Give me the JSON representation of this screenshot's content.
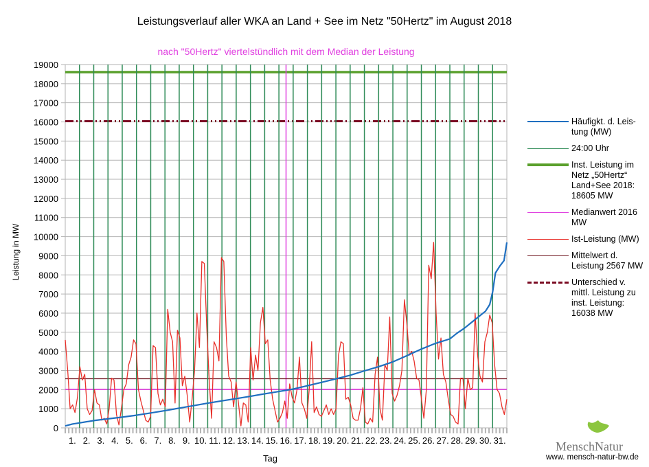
{
  "chart_data": {
    "type": "line",
    "title": "Leistungsverlauf aller WKA an Land + See im Netz \"50Hertz\" im August 2018",
    "subtitle": "nach \"50Hertz\" viertelstündlich mit dem Median der Leistung",
    "xlabel": "Tag",
    "ylabel": "Leistung in MW",
    "ylim": [
      0,
      19000
    ],
    "xlim": [
      0,
      31
    ],
    "grid": true,
    "legend_position": "right",
    "yticks": [
      0,
      1000,
      2000,
      3000,
      4000,
      5000,
      6000,
      7000,
      8000,
      9000,
      10000,
      11000,
      12000,
      13000,
      14000,
      15000,
      16000,
      17000,
      18000,
      19000
    ],
    "xtick_labels": [
      "1.",
      "2.",
      "3.",
      "4.",
      "5.",
      "6.",
      "7.",
      "8.",
      "9.",
      "10.",
      "11.",
      "12.",
      "13.",
      "14.",
      "15.",
      "16.",
      "17.",
      "18.",
      "19.",
      "20.",
      "21.",
      "22.",
      "23.",
      "24.",
      "25.",
      "26.",
      "27.",
      "28.",
      "29.",
      "30.",
      "31."
    ],
    "x_unit": "days since 1 Aug 00:00 (quarter-day samples)",
    "series": [
      {
        "name": "Häufigkt. d. Leistung (MW)",
        "color": "#1f6fc0",
        "kind": "duration-curve",
        "x": [
          0,
          0.5,
          1,
          2,
          3,
          4,
          5,
          6,
          7,
          8,
          9,
          10,
          11,
          12,
          13,
          14,
          15,
          16,
          17,
          18,
          19,
          20,
          21,
          22,
          23,
          24,
          25,
          26,
          27,
          27.5,
          28,
          28.5,
          29,
          29.5,
          29.8,
          30,
          30.2,
          30.5,
          30.8,
          31
        ],
        "values": [
          100,
          200,
          260,
          380,
          470,
          560,
          660,
          780,
          900,
          1030,
          1160,
          1290,
          1410,
          1530,
          1650,
          1780,
          1900,
          2030,
          2200,
          2380,
          2560,
          2750,
          2980,
          3200,
          3450,
          3780,
          4120,
          4420,
          4650,
          4950,
          5200,
          5500,
          5800,
          6100,
          6450,
          7100,
          8100,
          8450,
          8750,
          9700
        ]
      },
      {
        "name": "Ist-Leistung (MW)",
        "color": "#e8302a",
        "kind": "quarter-day samples",
        "values": [
          4600,
          3000,
          1000,
          1200,
          800,
          1600,
          3200,
          2500,
          2800,
          1000,
          700,
          900,
          2000,
          1300,
          1200,
          400,
          500,
          200,
          1000,
          2600,
          2500,
          700,
          150,
          1000,
          2000,
          2300,
          3300,
          3700,
          4600,
          4400,
          2000,
          1400,
          900,
          400,
          300,
          600,
          4300,
          4200,
          1800,
          1200,
          1500,
          1100,
          6200,
          5000,
          4500,
          1300,
          5100,
          4700,
          2200,
          2700,
          1700,
          300,
          1500,
          3000,
          6000,
          4200,
          8700,
          8600,
          5300,
          2500,
          500,
          4500,
          4200,
          3500,
          8900,
          8700,
          4800,
          2700,
          2400,
          1100,
          2400,
          1300,
          100,
          1300,
          1200,
          300,
          4200,
          2500,
          3800,
          3000,
          5500,
          6300,
          4400,
          4600,
          2500,
          1500,
          900,
          300,
          500,
          800,
          1400,
          500,
          2300,
          1600,
          1300,
          2000,
          3700,
          1300,
          1000,
          500,
          2000,
          4500,
          800,
          1100,
          700,
          600,
          900,
          1200,
          700,
          1000,
          700,
          1000,
          3800,
          4500,
          4400,
          1500,
          1600,
          1200,
          500,
          400,
          400,
          1000,
          2100,
          300,
          200,
          500,
          300,
          2800,
          3700,
          1000,
          400,
          3300,
          3000,
          5800,
          1800,
          1400,
          1700,
          2200,
          3000,
          6700,
          5500,
          3800,
          4000,
          3500,
          2600,
          2500,
          1500,
          500,
          2000,
          8500,
          7800,
          9700,
          6000,
          3600,
          4700,
          2800,
          2400,
          1500,
          700,
          600,
          300,
          200,
          2600,
          2600,
          1000,
          2600,
          2000,
          2100,
          6000,
          3800,
          2700,
          2400,
          4500,
          5000,
          5900,
          5500,
          3300,
          2000,
          1800,
          1100,
          700,
          1500
        ]
      },
      {
        "name": "24:00 Uhr",
        "color": "#2e8b57",
        "kind": "vertical-lines",
        "x": [
          1,
          2,
          3,
          4,
          5,
          6,
          7,
          8,
          9,
          10,
          11,
          12,
          13,
          14,
          15,
          16,
          17,
          18,
          19,
          20,
          21,
          22,
          23,
          24,
          25,
          26,
          27,
          28,
          29,
          30
        ]
      },
      {
        "name": "Inst. Leistung im Netz „50Hertz“ Land+See 2018: 18605 MW",
        "color": "#5aa02c",
        "kind": "hline",
        "value": 18605
      },
      {
        "name": "Medianwert 2016 MW",
        "color": "#e040e0",
        "kind": "hline",
        "value": 2016,
        "median_marker_x": 15.5
      },
      {
        "name": "Mittelwert d. Leistung 2567 MW",
        "color": "#6b0f1a",
        "kind": "hline",
        "value": 2567
      },
      {
        "name": "Unterschied v. mittl. Leistung zu inst. Leistung: 16038 MW",
        "color": "#7a0a22",
        "kind": "hline-dashdot",
        "value": 16038
      }
    ]
  },
  "legend": {
    "items": [
      {
        "label": "Häufigkt. d. Leis-tung (MW)",
        "color": "#1f6fc0",
        "style": "solid"
      },
      {
        "label": "24:00 Uhr",
        "color": "#2e8b57",
        "style": "thin"
      },
      {
        "label": "Inst. Leistung im Netz „50Hertz“ Land+See 2018: 18605 MW",
        "color": "#5aa02c",
        "style": "thick"
      },
      {
        "label": "Medianwert 2016 MW",
        "color": "#e040e0",
        "style": "thin"
      },
      {
        "label": "Ist-Leistung (MW)",
        "color": "#e8302a",
        "style": "thin"
      },
      {
        "label": "Mittelwert d. Leistung 2567 MW",
        "color": "#6b0f1a",
        "style": "thin"
      },
      {
        "label": "Unterschied v. mittl. Leistung zu inst. Leistung: 16038 MW",
        "color": "#7a0a22",
        "style": "dashdot"
      }
    ]
  },
  "logo": {
    "name": "MenschNatur",
    "url_text": "www. mensch-natur-bw.de"
  }
}
